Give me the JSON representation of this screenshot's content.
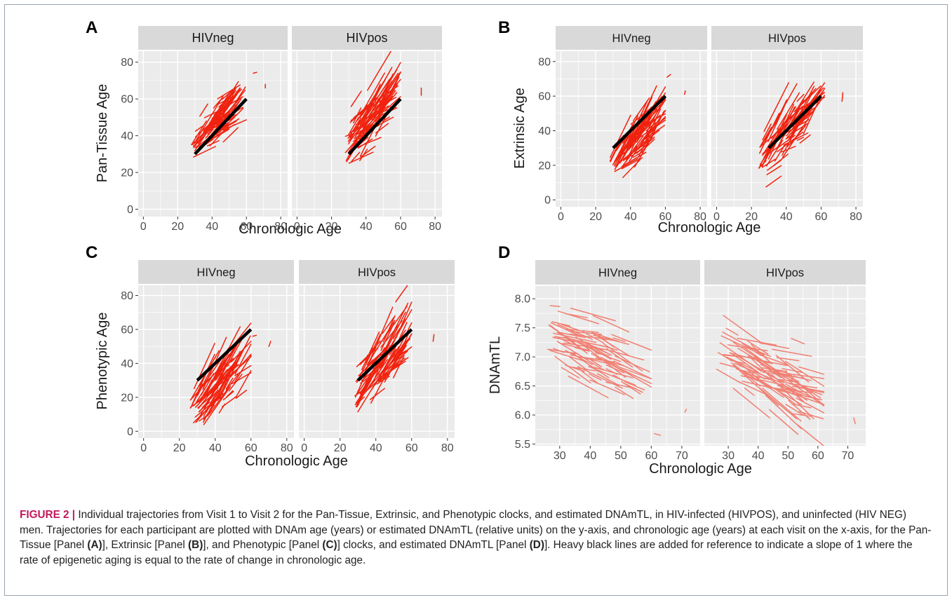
{
  "colors": {
    "panel_bg": "#ebebeb",
    "strip_bg": "#d9d9d9",
    "grid": "#ffffff",
    "trajectory_dark": "#f0220f",
    "trajectory_light": "#f07f72",
    "reference_line": "#000000",
    "caption_label": "#c2185b"
  },
  "caption": {
    "label": "FIGURE 2 |",
    "t1": " Individual trajectories from Visit 1 to Visit 2 for the Pan-Tissue, Extrinsic, and Phenotypic clocks, and estimated DNAmTL, in HIV-infected (HIVPOS), and uninfected (HIV NEG) men. Trajectories for each participant are plotted with DNAm age (years) or estimated DNAmTL (relative units) on the y-axis, and chronologic age (years) at each visit on the x-axis, for the Pan-Tissue [Panel ",
    "b1": "(A)",
    "t2": "], Extrinsic [Panel ",
    "b2": "(B)",
    "t3": "], and Phenotypic [Panel ",
    "b3": "(C)",
    "t4": "] clocks, and estimated DNAmTL [Panel ",
    "b4": "(D)",
    "t5": "]. Heavy black lines are added for reference to indicate a slope of 1 where the rate of epigenetic aging is equal to the rate of change in chronologic age."
  },
  "chart_data": [
    {
      "type": "line",
      "panel": "A",
      "xlabel": "Chronologic Age",
      "ylabel": "Pan-Tissue Age",
      "facets": [
        "HIVneg",
        "HIVpos"
      ],
      "xlim": [
        -3,
        84
      ],
      "ylim": [
        -4,
        86
      ],
      "xticks": [
        0,
        20,
        40,
        60,
        80
      ],
      "yticks": [
        0,
        20,
        40,
        60,
        80
      ],
      "reference_line": [
        [
          30,
          30
        ],
        [
          60,
          60
        ]
      ],
      "series": [
        {
          "group": "HIVneg",
          "n_trajectories": 90,
          "x_range": [
            28,
            60
          ],
          "age_offset_mean": 5,
          "age_offset_sd": 5,
          "slope_range": [
            0.4,
            1.6
          ],
          "outliers": [
            [
              [
                64,
                74
              ],
              [
                66,
                74.5
              ]
            ],
            [
              [
                71,
                66
              ],
              [
                71,
                68
              ]
            ]
          ]
        },
        {
          "group": "HIVpos",
          "n_trajectories": 100,
          "x_range": [
            28,
            60
          ],
          "age_offset_mean": 7,
          "age_offset_sd": 6,
          "slope_range": [
            0.3,
            2.0
          ],
          "outliers": [
            [
              [
                72,
                62
              ],
              [
                72,
                66
              ]
            ]
          ]
        }
      ]
    },
    {
      "type": "line",
      "panel": "B",
      "xlabel": "Chronologic Age",
      "ylabel": "Extrinsic Age",
      "facets": [
        "HIVneg",
        "HIVpos"
      ],
      "xlim": [
        -3,
        84
      ],
      "ylim": [
        -4,
        86
      ],
      "xticks": [
        0,
        20,
        40,
        60,
        80
      ],
      "yticks": [
        0,
        20,
        40,
        60,
        80
      ],
      "reference_line": [
        [
          30,
          30
        ],
        [
          60,
          60
        ]
      ],
      "series": [
        {
          "group": "HIVneg",
          "n_trajectories": 90,
          "x_range": [
            28,
            60
          ],
          "age_offset_mean": -9,
          "age_offset_sd": 6,
          "slope_range": [
            0.5,
            2.2
          ],
          "outliers": [
            [
              [
                61,
                71
              ],
              [
                63,
                72.5
              ]
            ],
            [
              [
                71,
                61
              ],
              [
                71.5,
                63
              ]
            ]
          ]
        },
        {
          "group": "HIVpos",
          "n_trajectories": 100,
          "x_range": [
            24,
            62
          ],
          "age_offset_mean": -2,
          "age_offset_sd": 7,
          "slope_range": [
            0.4,
            2.2
          ],
          "outliers": [
            [
              [
                72,
                57
              ],
              [
                72.5,
                62
              ]
            ]
          ]
        }
      ]
    },
    {
      "type": "line",
      "panel": "C",
      "xlabel": "Chronologic Age",
      "ylabel": "Phenotypic Age",
      "facets": [
        "HIVneg",
        "HIVpos"
      ],
      "xlim": [
        -3,
        84
      ],
      "ylim": [
        -4,
        86
      ],
      "xticks": [
        0,
        20,
        40,
        60,
        80
      ],
      "yticks": [
        0,
        20,
        40,
        60,
        80
      ],
      "reference_line": [
        [
          30,
          30
        ],
        [
          60,
          60
        ]
      ],
      "series": [
        {
          "group": "HIVneg",
          "n_trajectories": 90,
          "x_range": [
            26,
            60
          ],
          "age_offset_mean": -15,
          "age_offset_sd": 7,
          "slope_range": [
            0.6,
            2.4
          ],
          "outliers": [
            [
              [
                61,
                56
              ],
              [
                63,
                56.5
              ]
            ],
            [
              [
                70,
                50
              ],
              [
                71,
                53
              ]
            ]
          ]
        },
        {
          "group": "HIVpos",
          "n_trajectories": 100,
          "x_range": [
            28,
            60
          ],
          "age_offset_mean": -6,
          "age_offset_sd": 8,
          "slope_range": [
            0.6,
            2.5
          ],
          "outliers": [
            [
              [
                72,
                53
              ],
              [
                72.5,
                57
              ]
            ]
          ]
        }
      ]
    },
    {
      "type": "line",
      "panel": "D",
      "xlabel": "Chronologic Age",
      "ylabel": "DNAmTL",
      "facets": [
        "HIVneg",
        "HIVpos"
      ],
      "xlim": [
        22,
        76
      ],
      "ylim": [
        5.47,
        8.22
      ],
      "xticks": [
        30,
        40,
        50,
        60,
        70
      ],
      "yticks": [
        5.5,
        6.0,
        6.5,
        7.0,
        7.5,
        8.0
      ],
      "ytick_labels": [
        "5.5",
        "6.0",
        "6.5",
        "7.0",
        "7.5",
        "8.0"
      ],
      "series": [
        {
          "group": "HIVneg",
          "n_trajectories": 90,
          "x_range": [
            26,
            60
          ],
          "intercept_at_40": 7.1,
          "trend_per_year": -0.02,
          "sd": 0.28,
          "slope_range": [
            -0.04,
            -0.005
          ],
          "outliers": [
            [
              [
                61,
                5.68
              ],
              [
                63,
                5.65
              ]
            ],
            [
              [
                71,
                6.05
              ],
              [
                71.5,
                6.1
              ]
            ]
          ]
        },
        {
          "group": "HIVpos",
          "n_trajectories": 100,
          "x_range": [
            26,
            62
          ],
          "intercept_at_40": 6.75,
          "trend_per_year": -0.02,
          "sd": 0.28,
          "slope_range": [
            -0.05,
            -0.005
          ],
          "outliers": [
            [
              [
                72,
                5.95
              ],
              [
                72.5,
                5.85
              ]
            ]
          ]
        }
      ]
    }
  ]
}
